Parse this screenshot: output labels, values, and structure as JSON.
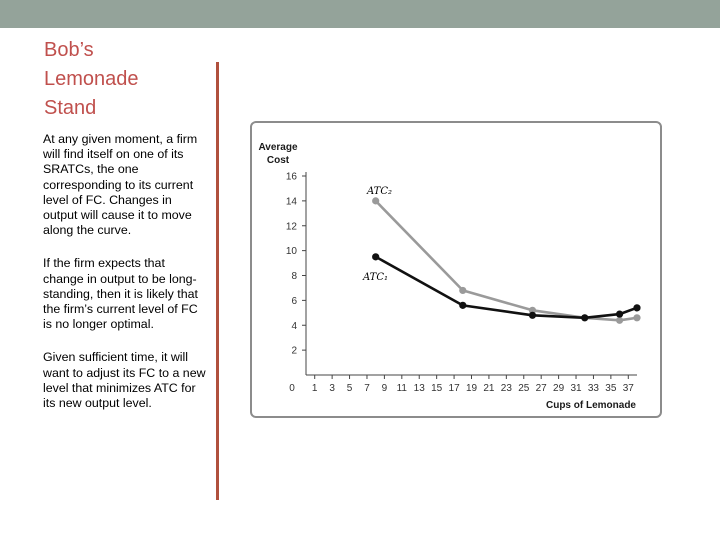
{
  "slide": {
    "title_lines": [
      "Bob’s",
      "Lemonade",
      "Stand"
    ],
    "paragraphs": [
      "At any given moment, a firm will find itself on one of its SRATCs, the one corresponding to its current level of FC. Changes in output will cause it to move along the curve.",
      "If the firm expects that change in output to be long-standing, then it is likely that the firm’s current level of FC is no longer optimal.",
      "Given sufficient time, it will want to adjust its FC to a new level that minimizes ATC for its new output level."
    ]
  },
  "colors": {
    "top_bar": "#94a39a",
    "title": "#c0504d",
    "divider": "#b0503d",
    "atc1": "#111111",
    "atc2": "#9a9a9a"
  },
  "chart_data": {
    "type": "line",
    "title": "",
    "ylabel": [
      "Average",
      "Cost"
    ],
    "xlabel": "Cups of Lemonade",
    "xlim": [
      0,
      38
    ],
    "ylim": [
      0,
      16
    ],
    "x_ticks": [
      0,
      1,
      3,
      5,
      7,
      9,
      11,
      13,
      15,
      17,
      19,
      21,
      23,
      25,
      27,
      29,
      31,
      33,
      35,
      37
    ],
    "y_ticks": [
      2,
      4,
      6,
      8,
      10,
      12,
      14,
      16
    ],
    "grid": false,
    "series": [
      {
        "name": "ATC₂",
        "color": "#9a9a9a",
        "points": [
          [
            8,
            14.0
          ],
          [
            18,
            6.8
          ],
          [
            26,
            5.2
          ],
          [
            32,
            4.6
          ],
          [
            36,
            4.4
          ],
          [
            38,
            4.6
          ]
        ]
      },
      {
        "name": "ATC₁",
        "color": "#111111",
        "points": [
          [
            8,
            9.5
          ],
          [
            18,
            5.6
          ],
          [
            26,
            4.8
          ],
          [
            32,
            4.6
          ],
          [
            36,
            4.9
          ],
          [
            38,
            5.4
          ]
        ]
      }
    ]
  }
}
